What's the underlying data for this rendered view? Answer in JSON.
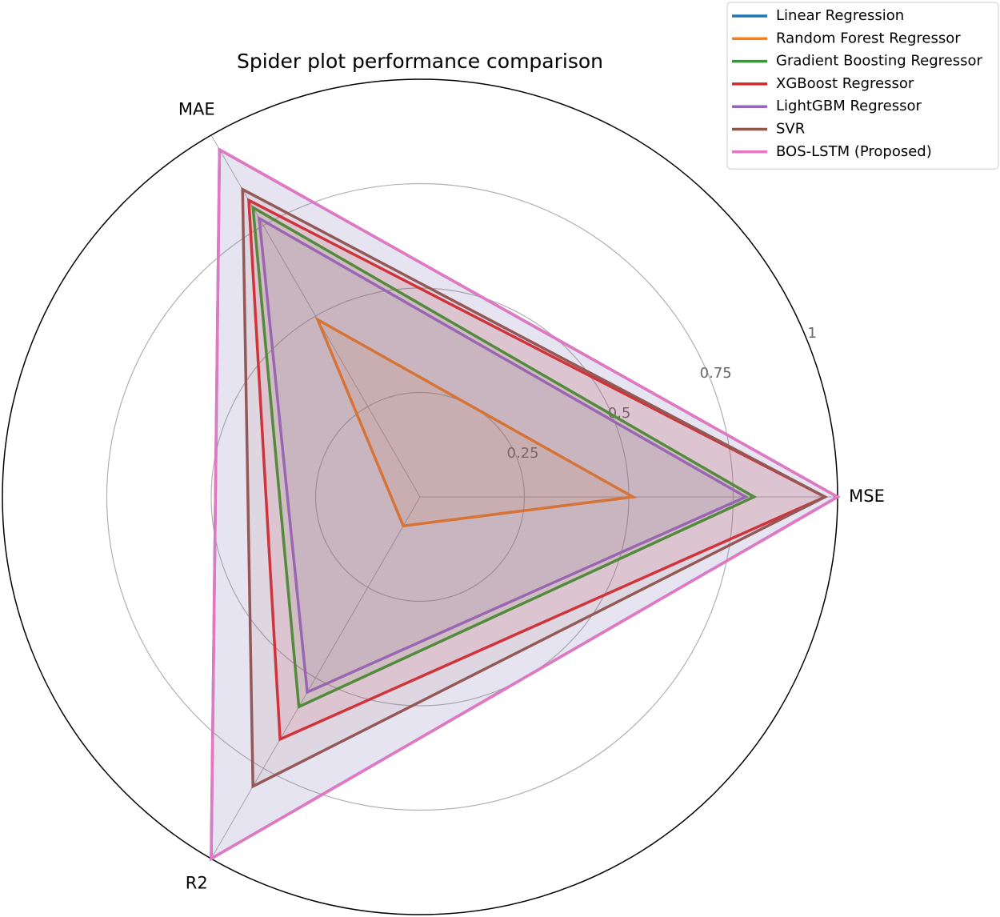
{
  "chart_data": {
    "type": "radar",
    "title": "Spider plot performance comparison",
    "categories": [
      "MSE",
      "MAE",
      "R2"
    ],
    "series": [
      {
        "name": "Linear Regression",
        "color": "#1f77b4",
        "values": [
          1.0,
          0.96,
          1.0
        ]
      },
      {
        "name": "Random Forest Regressor",
        "color": "#ff7f0e",
        "values": [
          0.51,
          0.49,
          0.08
        ]
      },
      {
        "name": "Gradient Boosting Regressor",
        "color": "#2ca02c",
        "values": [
          0.8,
          0.8,
          0.58
        ]
      },
      {
        "name": "XGBoost Regressor",
        "color": "#d62728",
        "values": [
          0.97,
          0.82,
          0.67
        ]
      },
      {
        "name": "LightGBM Regressor",
        "color": "#9467bd",
        "values": [
          0.78,
          0.77,
          0.54
        ]
      },
      {
        "name": "SVR",
        "color": "#8c564b",
        "values": [
          0.97,
          0.85,
          0.8
        ]
      },
      {
        "name": "BOS-LSTM (Proposed)",
        "color": "#e377c2",
        "values": [
          1.0,
          0.96,
          1.0
        ]
      }
    ],
    "rlim": [
      0,
      1
    ],
    "rticks": [
      0.25,
      0.5,
      0.75,
      1
    ],
    "grid": true,
    "legend": "upper right"
  }
}
